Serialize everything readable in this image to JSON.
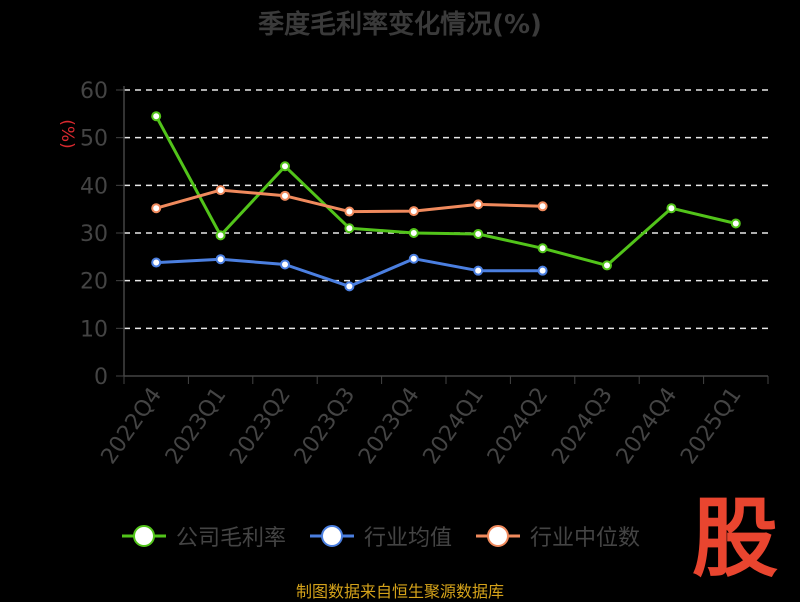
{
  "title": "季度毛利率变化情况(%)",
  "footer": "制图数据来自恒生聚源数据库",
  "logo_text": "股",
  "chart_data": {
    "type": "line",
    "ylabel": "(%)",
    "ylim": [
      0,
      60
    ],
    "yticks": [
      0,
      10,
      20,
      30,
      40,
      50,
      60
    ],
    "grid": true,
    "legend": "bottom",
    "categories": [
      "2022Q4",
      "2023Q1",
      "2023Q2",
      "2023Q3",
      "2023Q4",
      "2024Q1",
      "2024Q2",
      "2024Q3",
      "2024Q4",
      "2025Q1"
    ],
    "series": [
      {
        "name": "公司毛利率",
        "color": "#52c41a",
        "values": [
          54.5,
          29.5,
          44.0,
          31.0,
          30.0,
          29.8,
          26.8,
          23.2,
          35.2,
          32.0
        ]
      },
      {
        "name": "行业均值",
        "color": "#4b7fe0",
        "values": [
          23.8,
          24.5,
          23.4,
          18.8,
          24.6,
          22.1,
          22.1,
          null,
          null,
          null
        ]
      },
      {
        "name": "行业中位数",
        "color": "#f08a5d",
        "values": [
          35.2,
          39.0,
          37.8,
          34.5,
          34.6,
          36.0,
          35.6,
          null,
          null,
          null
        ]
      }
    ]
  }
}
